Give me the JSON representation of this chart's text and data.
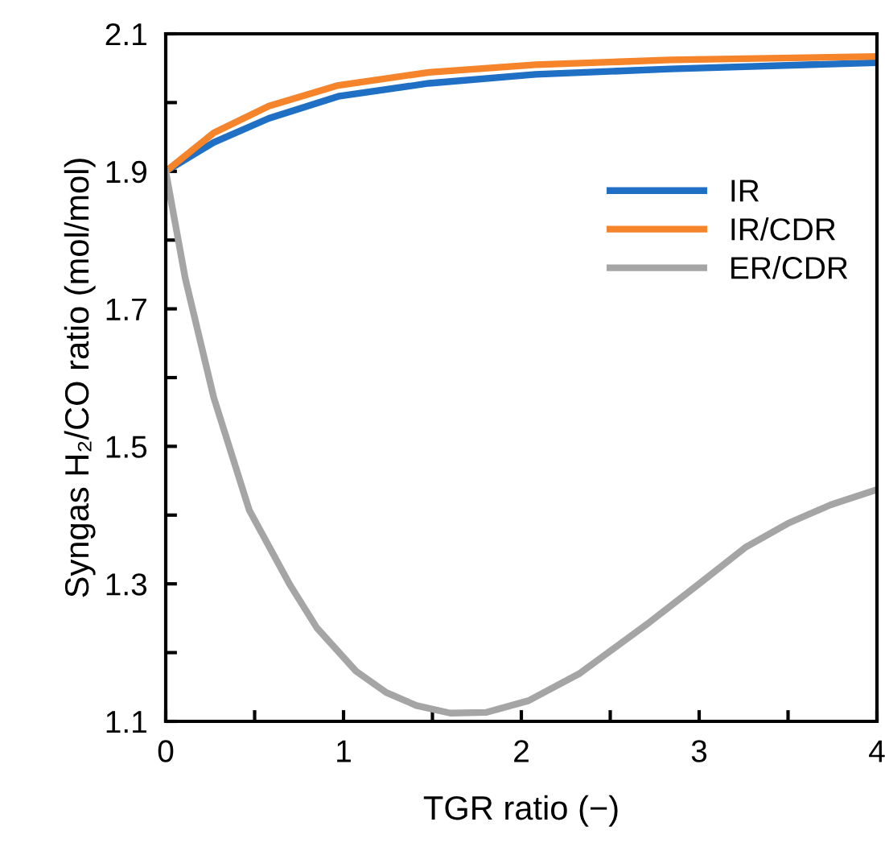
{
  "chart_data": {
    "type": "line",
    "xlabel": "TGR ratio (−)",
    "ylabel": "Syngas H₂/CO ratio (mol/mol)",
    "xlim": [
      0,
      4
    ],
    "ylim": [
      1.1,
      2.1
    ],
    "xticks": [
      0,
      {
        "value": 0.5,
        "label": null
      },
      1,
      {
        "value": 1.5,
        "label": null
      },
      2,
      {
        "value": 2.5,
        "label": null
      },
      3,
      {
        "value": 3.5,
        "label": null
      },
      4
    ],
    "yticks": [
      1.1,
      {
        "value": 1.2,
        "label": null
      },
      1.3,
      {
        "value": 1.4,
        "label": null
      },
      1.5,
      {
        "value": 1.6,
        "label": null
      },
      1.7,
      {
        "value": 1.8,
        "label": null
      },
      1.9,
      {
        "value": 2.0,
        "label": null
      },
      2.1
    ],
    "grid": false,
    "legend": "top right",
    "marker": "none",
    "line_style": "solid",
    "series": [
      {
        "name": "IR",
        "color": "#1f6fc5",
        "x": [
          0,
          0.27,
          0.58,
          0.97,
          1.48,
          2.08,
          2.84,
          4.0
        ],
        "values": [
          1.9,
          1.942,
          1.977,
          2.009,
          2.028,
          2.041,
          2.049,
          2.058
        ]
      },
      {
        "name": "IR/CDR",
        "color": "#f5842a",
        "x": [
          0,
          0.27,
          0.58,
          0.97,
          1.48,
          2.08,
          2.84,
          4.0
        ],
        "values": [
          1.9,
          1.956,
          1.995,
          2.025,
          2.044,
          2.055,
          2.062,
          2.067
        ]
      },
      {
        "name": "ER/CDR",
        "color": "#a5a5a5",
        "x": [
          0,
          0.11,
          0.27,
          0.47,
          0.7,
          0.85,
          1.07,
          1.24,
          1.41,
          1.6,
          1.8,
          2.04,
          2.33,
          2.72,
          2.99,
          3.26,
          3.5,
          3.74,
          4.0
        ],
        "values": [
          1.9,
          1.744,
          1.571,
          1.407,
          1.298,
          1.236,
          1.173,
          1.142,
          1.123,
          1.112,
          1.113,
          1.13,
          1.17,
          1.244,
          1.298,
          1.353,
          1.388,
          1.415,
          1.437
        ]
      }
    ]
  }
}
